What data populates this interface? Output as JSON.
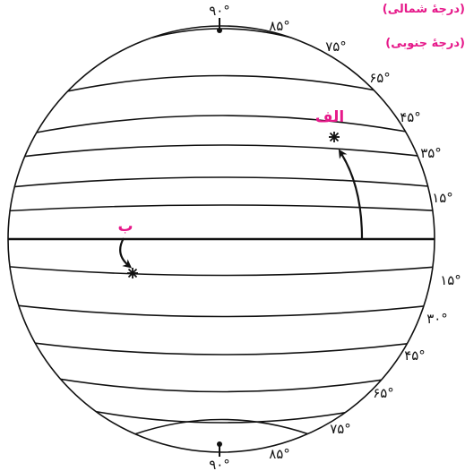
{
  "labels": {
    "north_note": "(درجهٔ شمالی)",
    "south_note": "(درجهٔ جنوبی)",
    "point_a": "الف",
    "point_b": "ب"
  },
  "degrees": {
    "top_pole": "۹۰°",
    "n85": "۸۵°",
    "n75": "۷۵°",
    "n65": "۶۵°",
    "n45": "۴۵°",
    "n35": "۳۵°",
    "n15": "۱۵°",
    "s15": "۱۵°",
    "s30": "۳۰°",
    "s45": "۴۵°",
    "s65": "۶۵°",
    "s75": "۷۵°",
    "s85": "۸۵°",
    "bottom_pole": "۹۰°"
  },
  "colors": {
    "accent": "#e6198a",
    "ink": "#111111"
  }
}
